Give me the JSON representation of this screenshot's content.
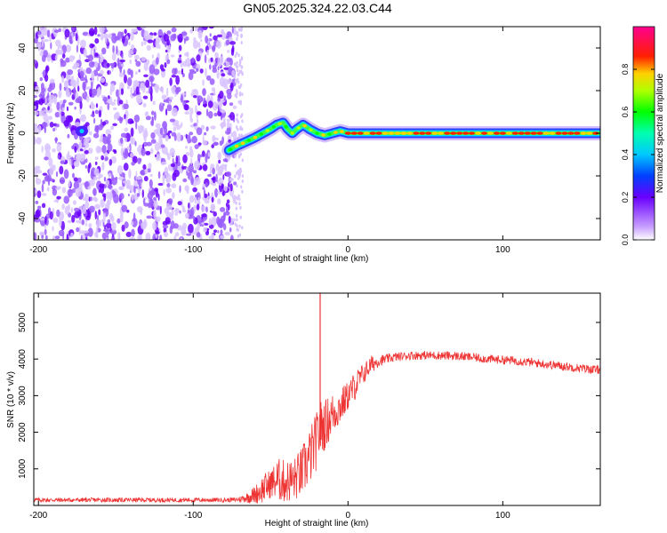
{
  "title": "GN05.2025.324.22.03.C44",
  "chart_data": [
    {
      "type": "heatmap",
      "xlabel": "Height of straight line (km)",
      "ylabel": "Frequency (Hz)",
      "xlim": [
        -203,
        163
      ],
      "ylim": [
        -50,
        50
      ],
      "x_ticks": [
        -200,
        -100,
        0,
        100
      ],
      "y_ticks": [
        -40,
        -20,
        0,
        20,
        40
      ],
      "noise_region_km": [
        -203,
        -73
      ],
      "signal_track": {
        "x": [
          -77,
          -72,
          -66,
          -60,
          -55,
          -50,
          -46,
          -42,
          -39,
          -36,
          -33,
          -29,
          -25,
          -20,
          -15,
          -10,
          -5,
          0,
          10,
          20,
          40,
          80,
          163
        ],
        "freq": [
          -8,
          -6,
          -4,
          -2,
          0,
          2,
          4,
          5,
          2,
          0,
          2,
          4,
          2,
          0,
          -1,
          0,
          1,
          0,
          0,
          0,
          0,
          0,
          0
        ]
      },
      "colorbar": {
        "label": "Normalized spectral amplitude",
        "range": [
          0,
          1
        ],
        "ticks": [
          0.0,
          0.2,
          0.4,
          0.6,
          0.8
        ],
        "tick_labels": [
          "0.0",
          "0.2",
          "0.4",
          "0.6",
          "0.8"
        ]
      }
    },
    {
      "type": "line",
      "xlabel": "Height of straight line (km)",
      "ylabel": "SNR (10 * v/v)",
      "xlim": [
        -203,
        163
      ],
      "ylim": [
        0,
        5800
      ],
      "x_ticks": [
        -200,
        -100,
        0,
        100
      ],
      "y_ticks": [
        1000,
        2000,
        3000,
        4000,
        5000
      ],
      "color": "#ee3333",
      "series": [
        {
          "name": "SNR",
          "x": [
            -203,
            -150,
            -100,
            -75,
            -70,
            -65,
            -60,
            -55,
            -50,
            -45,
            -40,
            -35,
            -30,
            -25,
            -20,
            -18,
            -15,
            -10,
            -5,
            0,
            5,
            10,
            15,
            20,
            25,
            30,
            40,
            50,
            60,
            70,
            80,
            90,
            100,
            110,
            120,
            130,
            140,
            150,
            163
          ],
          "values": [
            150,
            150,
            150,
            150,
            170,
            220,
            300,
            450,
            600,
            700,
            650,
            700,
            900,
            1300,
            1800,
            2100,
            2200,
            2500,
            2700,
            3000,
            3300,
            3600,
            3850,
            3950,
            4000,
            4050,
            4100,
            4100,
            4100,
            4080,
            4050,
            4000,
            3980,
            3950,
            3900,
            3850,
            3800,
            3750,
            3700
          ],
          "noise_amplitude": [
            60,
            60,
            60,
            60,
            80,
            150,
            250,
            400,
            400,
            600,
            600,
            600,
            700,
            800,
            800,
            800,
            700,
            600,
            500,
            400,
            400,
            300,
            250,
            150,
            130,
            120,
            120,
            120,
            120,
            120,
            120,
            120,
            120,
            120,
            120,
            120,
            120,
            120,
            120
          ]
        }
      ],
      "spike": {
        "x": -18,
        "value": 5800
      }
    }
  ]
}
